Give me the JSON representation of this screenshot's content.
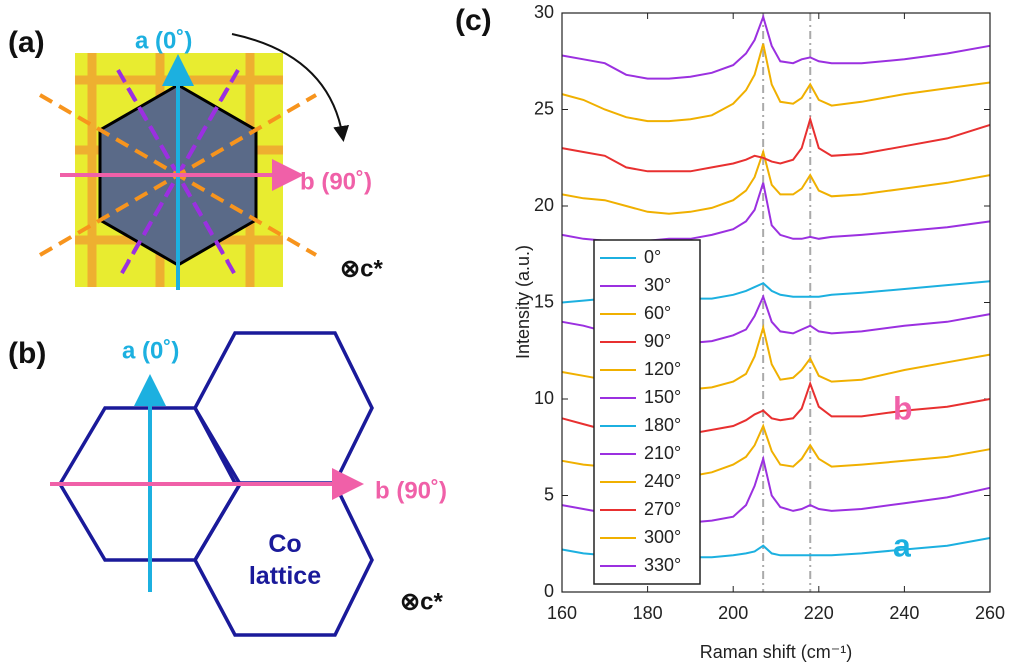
{
  "panels": {
    "a": {
      "label": "(a)",
      "a_axis": "a (0˚)",
      "b_axis": "b (90˚)",
      "c_axis": "⊗c*"
    },
    "b": {
      "label": "(b)",
      "a_axis": "a (0˚)",
      "b_axis": "b (90˚)",
      "c_axis": "⊗c*",
      "lattice": "Co lattice"
    }
  },
  "chart_data": {
    "type": "line",
    "panel_label": "(c)",
    "xlabel": "Raman shift (cm⁻¹)",
    "ylabel": "Intensity (a.u.)",
    "xlim": [
      160,
      260
    ],
    "xticks": [
      160,
      180,
      200,
      220,
      240,
      260
    ],
    "ylim": [
      0,
      30
    ],
    "yticks": [
      0,
      5,
      10,
      15,
      20,
      25,
      30
    ],
    "vlines": [
      207,
      218
    ],
    "x": [
      160,
      165,
      170,
      175,
      180,
      185,
      190,
      195,
      200,
      203,
      205,
      207,
      209,
      211,
      214,
      216,
      218,
      220,
      223,
      230,
      240,
      250,
      260
    ],
    "series": [
      {
        "name": "0°",
        "color": "#1cb0e0",
        "values": [
          2.2,
          2.0,
          1.9,
          1.8,
          1.8,
          1.8,
          1.8,
          1.8,
          1.9,
          2.0,
          2.1,
          2.4,
          2.0,
          1.9,
          1.9,
          1.9,
          1.9,
          1.9,
          1.9,
          2.0,
          2.2,
          2.4,
          2.8
        ]
      },
      {
        "name": "30°",
        "color": "#9b30e0",
        "values": [
          4.5,
          4.3,
          4.1,
          3.9,
          3.8,
          3.7,
          3.6,
          3.7,
          3.9,
          4.5,
          5.5,
          6.9,
          5.0,
          4.4,
          4.2,
          4.3,
          4.5,
          4.3,
          4.2,
          4.3,
          4.6,
          4.9,
          5.4
        ]
      },
      {
        "name": "60°",
        "color": "#f0b000",
        "values": [
          6.8,
          6.6,
          6.5,
          6.3,
          6.0,
          5.9,
          6.0,
          6.2,
          6.6,
          7.0,
          7.6,
          8.6,
          7.3,
          6.6,
          6.5,
          6.9,
          7.6,
          6.9,
          6.5,
          6.6,
          6.8,
          7.0,
          7.4
        ]
      },
      {
        "name": "90°",
        "color": "#e83030",
        "values": [
          9.0,
          8.7,
          8.4,
          8.2,
          8.1,
          8.0,
          8.2,
          8.4,
          8.6,
          8.9,
          9.2,
          9.4,
          9.0,
          8.9,
          9.0,
          9.5,
          10.8,
          9.6,
          9.1,
          9.1,
          9.4,
          9.6,
          10.0
        ]
      },
      {
        "name": "120°",
        "color": "#f0b000",
        "values": [
          11.4,
          11.2,
          11.0,
          10.6,
          10.5,
          10.4,
          10.5,
          10.6,
          10.9,
          11.3,
          12.2,
          13.7,
          11.8,
          11.0,
          11.1,
          11.5,
          12.1,
          11.2,
          10.9,
          11.0,
          11.5,
          11.9,
          12.3
        ]
      },
      {
        "name": "150°",
        "color": "#9b30e0",
        "values": [
          14.0,
          13.8,
          13.5,
          13.1,
          13.0,
          12.9,
          12.9,
          13.0,
          13.3,
          13.6,
          14.3,
          15.3,
          14.0,
          13.5,
          13.4,
          13.6,
          13.8,
          13.5,
          13.4,
          13.5,
          13.8,
          14.0,
          14.4
        ]
      },
      {
        "name": "180°",
        "color": "#1cb0e0",
        "values": [
          15.0,
          15.1,
          15.2,
          15.3,
          15.3,
          15.2,
          15.2,
          15.2,
          15.4,
          15.6,
          15.8,
          16.0,
          15.6,
          15.4,
          15.3,
          15.3,
          15.3,
          15.3,
          15.4,
          15.5,
          15.7,
          15.9,
          16.1
        ]
      },
      {
        "name": "210°",
        "color": "#9b30e0",
        "values": [
          18.5,
          18.3,
          18.2,
          18.2,
          18.2,
          18.3,
          18.3,
          18.5,
          18.8,
          19.2,
          19.8,
          21.2,
          19.0,
          18.5,
          18.3,
          18.3,
          18.4,
          18.3,
          18.4,
          18.5,
          18.7,
          18.9,
          19.2
        ]
      },
      {
        "name": "240°",
        "color": "#f0b000",
        "values": [
          20.6,
          20.4,
          20.3,
          20.0,
          19.7,
          19.6,
          19.7,
          19.9,
          20.3,
          20.8,
          21.5,
          22.8,
          21.1,
          20.6,
          20.6,
          20.9,
          21.6,
          20.8,
          20.5,
          20.6,
          20.9,
          21.2,
          21.6
        ]
      },
      {
        "name": "270°",
        "color": "#e83030",
        "values": [
          23.0,
          22.8,
          22.6,
          22.0,
          21.8,
          21.8,
          21.8,
          22.0,
          22.2,
          22.4,
          22.6,
          22.5,
          22.3,
          22.2,
          22.4,
          23.0,
          24.5,
          23.0,
          22.6,
          22.7,
          23.1,
          23.5,
          24.2
        ]
      },
      {
        "name": "300°",
        "color": "#f0b000",
        "values": [
          25.8,
          25.5,
          25.0,
          24.6,
          24.4,
          24.4,
          24.5,
          24.7,
          25.3,
          26.0,
          26.8,
          28.4,
          26.3,
          25.4,
          25.3,
          25.6,
          26.3,
          25.5,
          25.2,
          25.4,
          25.8,
          26.1,
          26.4
        ]
      },
      {
        "name": "330°",
        "color": "#9b30e0",
        "values": [
          27.8,
          27.6,
          27.4,
          26.8,
          26.6,
          26.6,
          26.7,
          26.9,
          27.3,
          27.9,
          28.6,
          29.8,
          28.3,
          27.5,
          27.4,
          27.6,
          27.7,
          27.5,
          27.4,
          27.4,
          27.6,
          27.9,
          28.3
        ]
      }
    ],
    "annotations": [
      {
        "text": "a",
        "color": "#1cb0e0"
      },
      {
        "text": "b",
        "color": "#f060a8"
      }
    ]
  }
}
